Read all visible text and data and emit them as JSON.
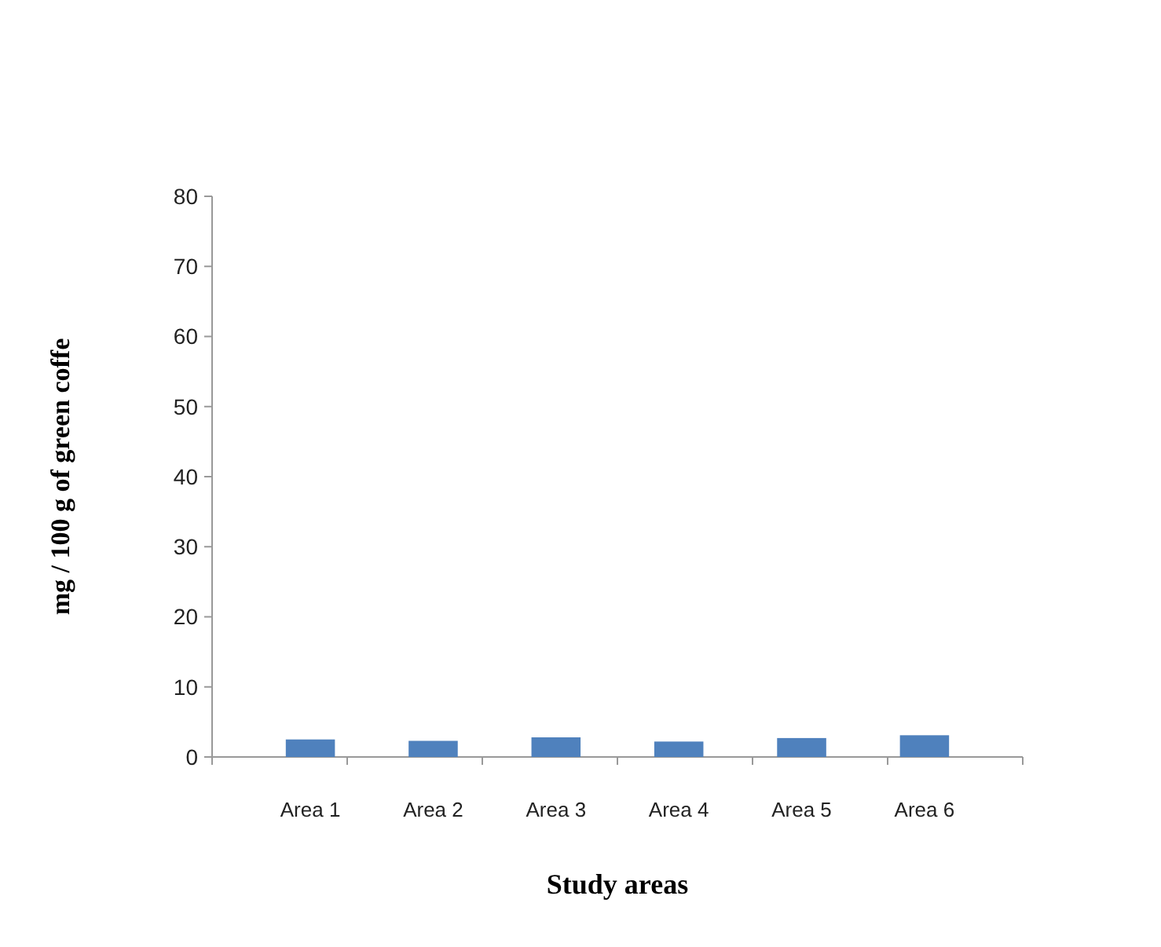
{
  "chart_data": {
    "type": "bar",
    "xlabel": "Study areas",
    "ylabel": "mg / 100 g of green coffe",
    "categories": [
      "Area 1",
      "Area 2",
      "Area 3",
      "Area 4",
      "Area 5",
      "Area 6"
    ],
    "values": [
      2.5,
      2.3,
      2.8,
      2.2,
      2.7,
      3.1
    ],
    "color": "#4f81bd",
    "ylim": [
      0,
      80
    ],
    "yticks": [
      0,
      10,
      20,
      30,
      40,
      50,
      60,
      70,
      80
    ],
    "grid": false
  }
}
